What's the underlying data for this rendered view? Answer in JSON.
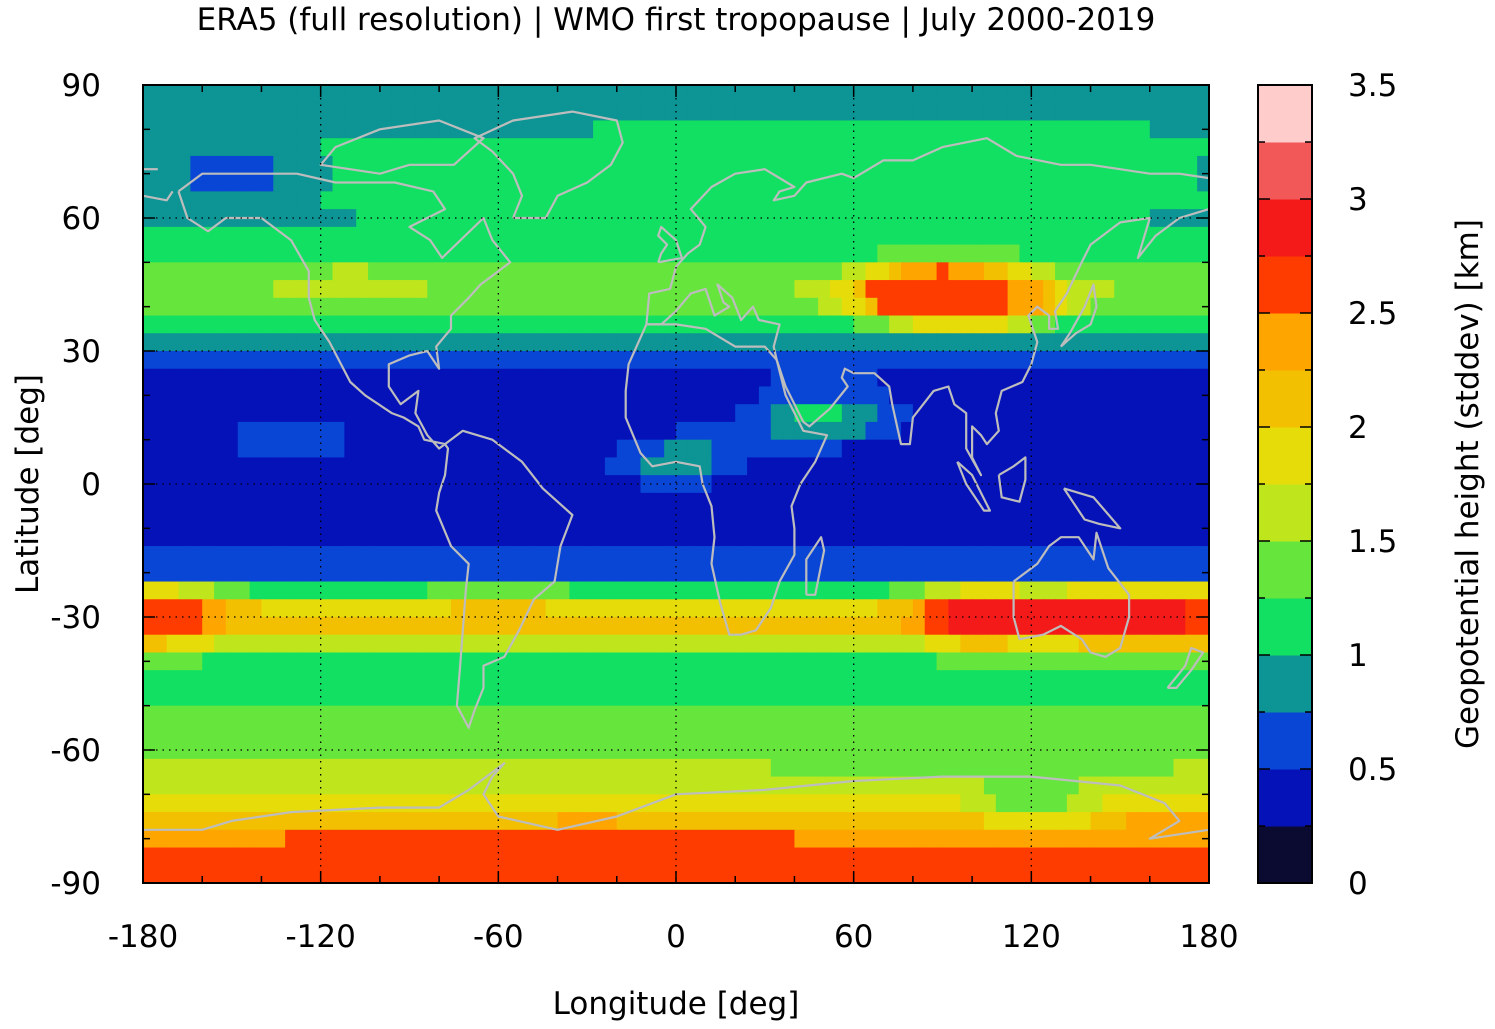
{
  "chart_data": {
    "type": "heatmap",
    "title": "ERA5 (full resolution) | WMO first tropopause | July 2000-2019",
    "xlabel": "Longitude [deg]",
    "ylabel": "Latitude [deg]",
    "colorbar_label": "Geopotential height (stddev) [km]",
    "xlim": [
      -180,
      180
    ],
    "ylim": [
      -90,
      90
    ],
    "xticks": [
      -180,
      -120,
      -60,
      0,
      60,
      120,
      180
    ],
    "yticks": [
      -90,
      -60,
      -30,
      0,
      30,
      60,
      90
    ],
    "xtick_labels": [
      "-180",
      "-120",
      "-60",
      "0",
      "60",
      "120",
      "180"
    ],
    "ytick_labels": [
      "-90",
      "-60",
      "-30",
      "0",
      "30",
      "60",
      "90"
    ],
    "grid": true,
    "colorbar": {
      "range": [
        0,
        3.5
      ],
      "ticks": [
        0,
        0.5,
        1,
        1.5,
        2,
        2.5,
        3,
        3.5
      ],
      "tick_labels": [
        "0",
        "0.5",
        "1",
        "1.5",
        "2",
        "2.5",
        "3",
        "3.5"
      ],
      "levels": [
        0,
        0.25,
        0.5,
        0.75,
        1.0,
        1.25,
        1.5,
        1.75,
        2.0,
        2.25,
        2.5,
        2.75,
        3.0,
        3.25,
        3.5
      ],
      "colors": [
        "#0b0a30",
        "#0512b8",
        "#0a46d6",
        "#0d9494",
        "#12e062",
        "#66e63c",
        "#bfe61c",
        "#e6dc0a",
        "#f2c000",
        "#ffa500",
        "#ff3c00",
        "#f51a1a",
        "#f25858",
        "#ffcccc"
      ]
    },
    "zonal_mean_profile": {
      "lat": [
        90,
        80,
        70,
        60,
        50,
        45,
        40,
        30,
        20,
        10,
        0,
        -10,
        -20,
        -25,
        -30,
        -35,
        -40,
        -50,
        -60,
        -65,
        -70,
        -75,
        -80,
        -90
      ],
      "value": [
        0.95,
        1.0,
        1.05,
        1.0,
        1.2,
        1.5,
        1.35,
        0.6,
        0.4,
        0.35,
        0.3,
        0.45,
        0.6,
        1.3,
        2.3,
        1.6,
        1.2,
        1.25,
        1.3,
        1.55,
        1.85,
        2.1,
        2.5,
        2.7
      ]
    },
    "regional_features": [
      {
        "lon": 80,
        "lat": 43,
        "value": 2.8
      },
      {
        "lon": 110,
        "lat": 42,
        "value": 2.4
      },
      {
        "lon": -110,
        "lat": 45,
        "value": 1.6
      },
      {
        "lon": 50,
        "lat": 15,
        "value": 1.1
      },
      {
        "lon": 0,
        "lat": 5,
        "value": 0.9
      },
      {
        "lon": -130,
        "lat": 10,
        "value": 0.7
      },
      {
        "lon": 100,
        "lat": -30,
        "value": 3.0
      },
      {
        "lon": 150,
        "lat": -30,
        "value": 2.9
      },
      {
        "lon": -170,
        "lat": -30,
        "value": 2.6
      },
      {
        "lon": -60,
        "lat": -30,
        "value": 2.1
      },
      {
        "lon": -30,
        "lat": -83,
        "value": 2.6
      },
      {
        "lon": 160,
        "lat": -80,
        "value": 2.5
      },
      {
        "lon": 120,
        "lat": -70,
        "value": 1.2
      },
      {
        "lon": -150,
        "lat": 70,
        "value": 0.5
      },
      {
        "lon": 120,
        "lat": 70,
        "value": 1.2
      }
    ]
  }
}
